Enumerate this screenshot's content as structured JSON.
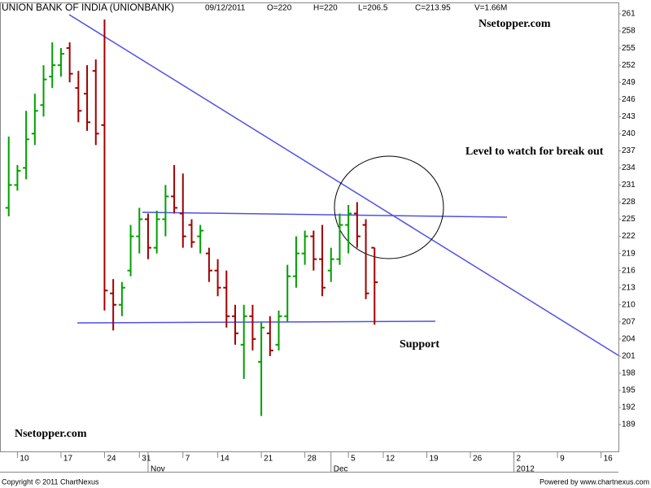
{
  "chart_data": {
    "type": "ohlc",
    "title": "UNION BANK OF INDIA (UNIONBANK)",
    "info": [
      "09/12/2011",
      "O=220",
      "H=220",
      "L=206.5",
      "C=213.95",
      "V=1.66M"
    ],
    "annotations": [
      "Nsetopper.com",
      "Level to watch for break out",
      "Support",
      "Nsetopper.com"
    ],
    "footer": [
      "Copyright © 2011 ChartNexus",
      "Powered by www.chartnexus.com"
    ],
    "x": [
      "2011-10-07",
      "2011-10-10",
      "2011-10-11",
      "2011-10-12",
      "2011-10-13",
      "2011-10-14",
      "2011-10-17",
      "2011-10-18",
      "2011-10-19",
      "2011-10-20",
      "2011-10-21",
      "2011-10-24",
      "2011-10-25",
      "2011-10-26",
      "2011-10-28",
      "2011-10-31",
      "2011-11-01",
      "2011-11-02",
      "2011-11-03",
      "2011-11-04",
      "2011-11-07",
      "2011-11-08",
      "2011-11-09",
      "2011-11-11",
      "2011-11-14",
      "2011-11-15",
      "2011-11-16",
      "2011-11-17",
      "2011-11-18",
      "2011-11-21",
      "2011-11-22",
      "2011-11-23",
      "2011-11-24",
      "2011-11-25",
      "2011-11-28",
      "2011-11-29",
      "2011-11-30",
      "2011-12-01",
      "2011-12-02",
      "2011-12-05",
      "2011-12-07",
      "2011-12-08",
      "2011-12-09"
    ],
    "open": [
      227,
      231,
      234,
      240,
      245,
      250,
      252,
      255,
      248,
      247,
      251,
      241.5,
      212,
      210,
      216,
      222,
      225,
      220,
      225,
      229,
      226,
      224,
      222,
      219,
      216,
      213,
      208,
      203,
      208,
      200,
      205,
      203,
      208,
      215,
      219,
      222,
      218,
      216,
      218,
      224,
      226,
      224,
      220
    ],
    "high": [
      239.5,
      234.5,
      244,
      247,
      252,
      256,
      255,
      256,
      251,
      252,
      253,
      260,
      214.5,
      214,
      224,
      227,
      226,
      226.5,
      231,
      234.5,
      233,
      225,
      224,
      220,
      218,
      216,
      210,
      210,
      210,
      207,
      208,
      209,
      217,
      222,
      223,
      223,
      224,
      220,
      226,
      227.5,
      228,
      225,
      220
    ],
    "low": [
      225.5,
      230,
      232,
      238,
      243,
      248,
      250,
      249,
      242,
      240.5,
      238,
      209,
      205.5,
      208,
      215,
      219,
      218,
      219,
      222,
      226,
      220,
      220,
      219,
      214,
      211.5,
      206,
      203,
      197,
      202,
      190.5,
      201,
      202,
      207,
      213,
      217,
      216,
      211.5,
      214,
      217,
      219,
      220,
      211,
      206.5
    ],
    "close": [
      231,
      233.5,
      239,
      244,
      249.5,
      252,
      254,
      250.5,
      244,
      242,
      240,
      212.5,
      210,
      213,
      222,
      225,
      220,
      225,
      229,
      227,
      222,
      221,
      223,
      216,
      213,
      208,
      205,
      208,
      204,
      206,
      202,
      208,
      215,
      219,
      222,
      218,
      213,
      218,
      224,
      226,
      222,
      212,
      213.95
    ],
    "up_color": "#00a000",
    "down_color": "#a00000",
    "skip_dates": [
      "2011-10-27",
      "2011-11-10",
      "2011-12-06"
    ],
    "xlim": [
      "2011-10-06",
      "2012-01-18"
    ],
    "xticks": [
      {
        "value": "2011-10-10",
        "label": "10"
      },
      {
        "value": "2011-10-17",
        "label": "17"
      },
      {
        "value": "2011-10-24",
        "label": "24"
      },
      {
        "value": "2011-10-31",
        "label": "31"
      },
      {
        "value": "2011-11-07",
        "label": "7"
      },
      {
        "value": "2011-11-14",
        "label": "14"
      },
      {
        "value": "2011-11-21",
        "label": "21"
      },
      {
        "value": "2011-11-28",
        "label": "28"
      },
      {
        "value": "2011-12-05",
        "label": "5"
      },
      {
        "value": "2011-12-12",
        "label": "12"
      },
      {
        "value": "2011-12-19",
        "label": "19"
      },
      {
        "value": "2011-12-26",
        "label": "26"
      },
      {
        "value": "2012-01-02",
        "label": "2"
      },
      {
        "value": "2012-01-09",
        "label": "9"
      },
      {
        "value": "2012-01-16",
        "label": "16"
      }
    ],
    "month_ticks": [
      {
        "value": "2011-11-01",
        "label": "Nov"
      },
      {
        "value": "2011-12-01",
        "label": "Dec"
      },
      {
        "value": "2012-01-02",
        "label": "2012"
      }
    ],
    "ylim": [
      184.3,
      263
    ],
    "yticks": [
      261,
      258,
      255,
      252,
      249,
      246,
      243,
      240,
      237,
      234,
      231,
      228,
      225,
      222,
      219,
      216,
      213,
      210,
      207,
      204,
      201,
      198,
      195,
      192,
      189
    ]
  }
}
